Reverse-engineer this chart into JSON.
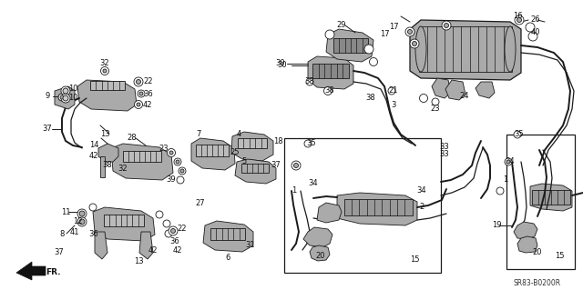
{
  "bg_color": "#ffffff",
  "diagram_ref": "SR83-B0200R",
  "fig_w": 6.4,
  "fig_h": 3.19,
  "dpi": 100
}
